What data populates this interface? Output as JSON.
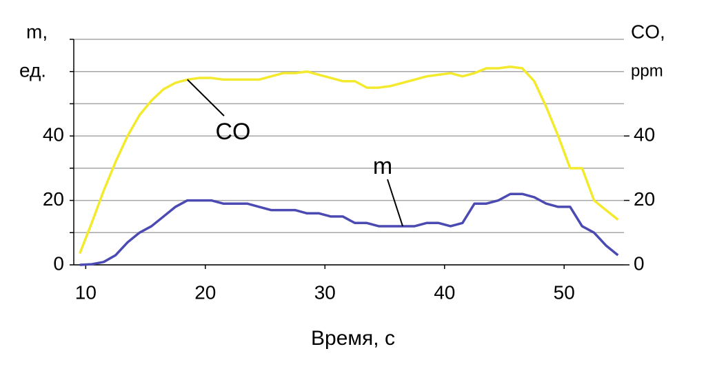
{
  "chart_data": {
    "type": "line",
    "x_label": "Время, с",
    "y_label_lines": [
      "m,",
      "ед."
    ],
    "y2_label_lines": [
      "CO,",
      "ppm"
    ],
    "annotations": [
      {
        "text": "CO",
        "series": 1
      },
      {
        "text": "m",
        "series": 0
      }
    ],
    "x": [
      9.5,
      10.5,
      11.5,
      12.5,
      13.5,
      14.5,
      15.5,
      16.5,
      17.5,
      18.5,
      19.5,
      20.5,
      21.5,
      22.5,
      23.5,
      24.5,
      25.5,
      26.5,
      27.5,
      28.5,
      29.5,
      30.5,
      31.5,
      32.5,
      33.5,
      34.5,
      35.5,
      36.5,
      37.5,
      38.5,
      39.5,
      40.5,
      41.5,
      42.5,
      43.5,
      44.5,
      45.5,
      46.5,
      47.5,
      48.5,
      49.5,
      50.5,
      51.5,
      52.5,
      53.5,
      54.5
    ],
    "series": [
      {
        "name": "m",
        "color": "#4a4ab2",
        "values": [
          0,
          0.2,
          0.9,
          3,
          7,
          10,
          12,
          15,
          18,
          20,
          20,
          20,
          19,
          19,
          19,
          18,
          17,
          17,
          17,
          16,
          16,
          15,
          15,
          13,
          13,
          12,
          12,
          12,
          12,
          13,
          13,
          12,
          13,
          19,
          19,
          20,
          22,
          22,
          21,
          19,
          18,
          18,
          12,
          10,
          6,
          3
        ]
      },
      {
        "name": "CO",
        "color": "#f3ea2e",
        "axis": "y2",
        "values": [
          3.5,
          13,
          23,
          32,
          40,
          46.5,
          51,
          54.5,
          56.5,
          57.5,
          58,
          58,
          57.5,
          57.5,
          57.5,
          57.5,
          58.5,
          59.5,
          59.5,
          60,
          59,
          58,
          57,
          57,
          55,
          55,
          55.5,
          56.5,
          57.5,
          58.5,
          59,
          59.5,
          58.5,
          59.5,
          61,
          61,
          61.5,
          61,
          57,
          49,
          40,
          30,
          30,
          20,
          17,
          14
        ]
      }
    ],
    "xlim": [
      9,
      55
    ],
    "xticks": [
      10,
      20,
      30,
      40,
      50
    ],
    "ylim": [
      0,
      70
    ],
    "yticks": [
      0,
      20,
      40
    ],
    "y2lim": [
      0,
      70
    ],
    "y2ticks": [
      0,
      20,
      40
    ],
    "grid_lines": [
      0,
      10,
      20,
      30,
      40,
      50,
      60,
      70
    ]
  }
}
